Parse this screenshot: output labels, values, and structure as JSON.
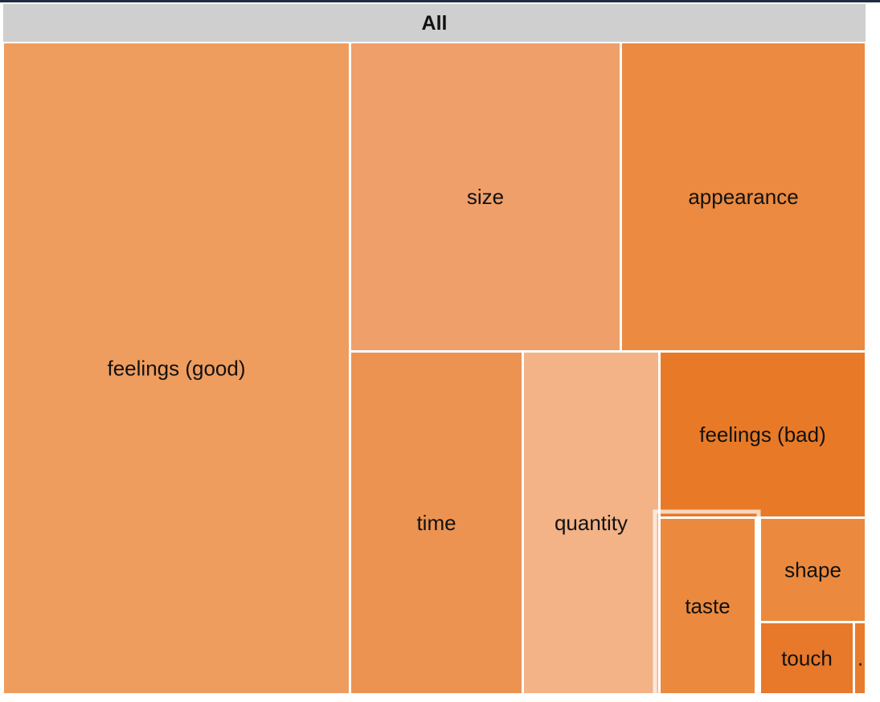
{
  "chart_data": {
    "type": "treemap",
    "root": "All",
    "nodes": [
      {
        "label": "feelings (good)",
        "color": "#EE9D5F"
      },
      {
        "label": "size",
        "color": "#EF9F69"
      },
      {
        "label": "appearance",
        "color": "#EB8A40"
      },
      {
        "label": "time",
        "color": "#ED9352"
      },
      {
        "label": "quantity",
        "color": "#F3B387"
      },
      {
        "label": "feelings (bad)",
        "color": "#E87A27"
      },
      {
        "label": "taste",
        "color": "#EB8A3F",
        "highlighted": true
      },
      {
        "label": "shape",
        "color": "#EB8A3E"
      },
      {
        "label": "touch",
        "color": "#E8782A"
      },
      {
        "label": "...",
        "color": "#E87C2C"
      }
    ]
  },
  "colors": {
    "header_bar": "#CFCFCF",
    "border": "#FFFFFF",
    "label_text": "#111111"
  }
}
